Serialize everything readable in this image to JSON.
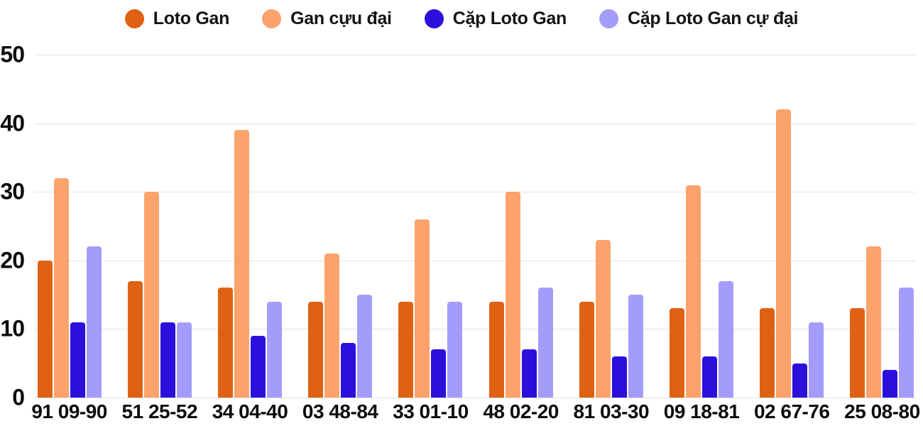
{
  "chart_data": {
    "type": "bar",
    "title": "",
    "xlabel": "",
    "ylabel": "",
    "categories": [
      "91 09-90",
      "51 25-52",
      "34 04-40",
      "03 48-84",
      "33 01-10",
      "48 02-20",
      "81 03-30",
      "09 18-81",
      "02 67-76",
      "25 08-80"
    ],
    "series": [
      {
        "name": "Loto Gan",
        "color": "#DF6214",
        "values": [
          20,
          17,
          16,
          14,
          14,
          14,
          14,
          13,
          13,
          13
        ]
      },
      {
        "name": "Gan cựu đại",
        "color": "#FCA36C",
        "values": [
          32,
          30,
          39,
          21,
          26,
          30,
          23,
          31,
          42,
          22
        ]
      },
      {
        "name": "Cặp Loto Gan",
        "color": "#2B10DC",
        "values": [
          11,
          11,
          9,
          8,
          7,
          7,
          6,
          6,
          5,
          4
        ]
      },
      {
        "name": "Cặp Loto Gan cự đại",
        "color": "#A49CFB",
        "values": [
          22,
          11,
          14,
          15,
          14,
          16,
          15,
          17,
          11,
          16
        ]
      }
    ],
    "ylim": [
      0,
      50
    ],
    "yticks": [
      0,
      10,
      20,
      30,
      40,
      50
    ],
    "grid": "horizontal",
    "gridline_color": "#E4E4E4",
    "legend_position": "top",
    "background": "#FFFFFF",
    "text_color": "#0D0D0D"
  }
}
